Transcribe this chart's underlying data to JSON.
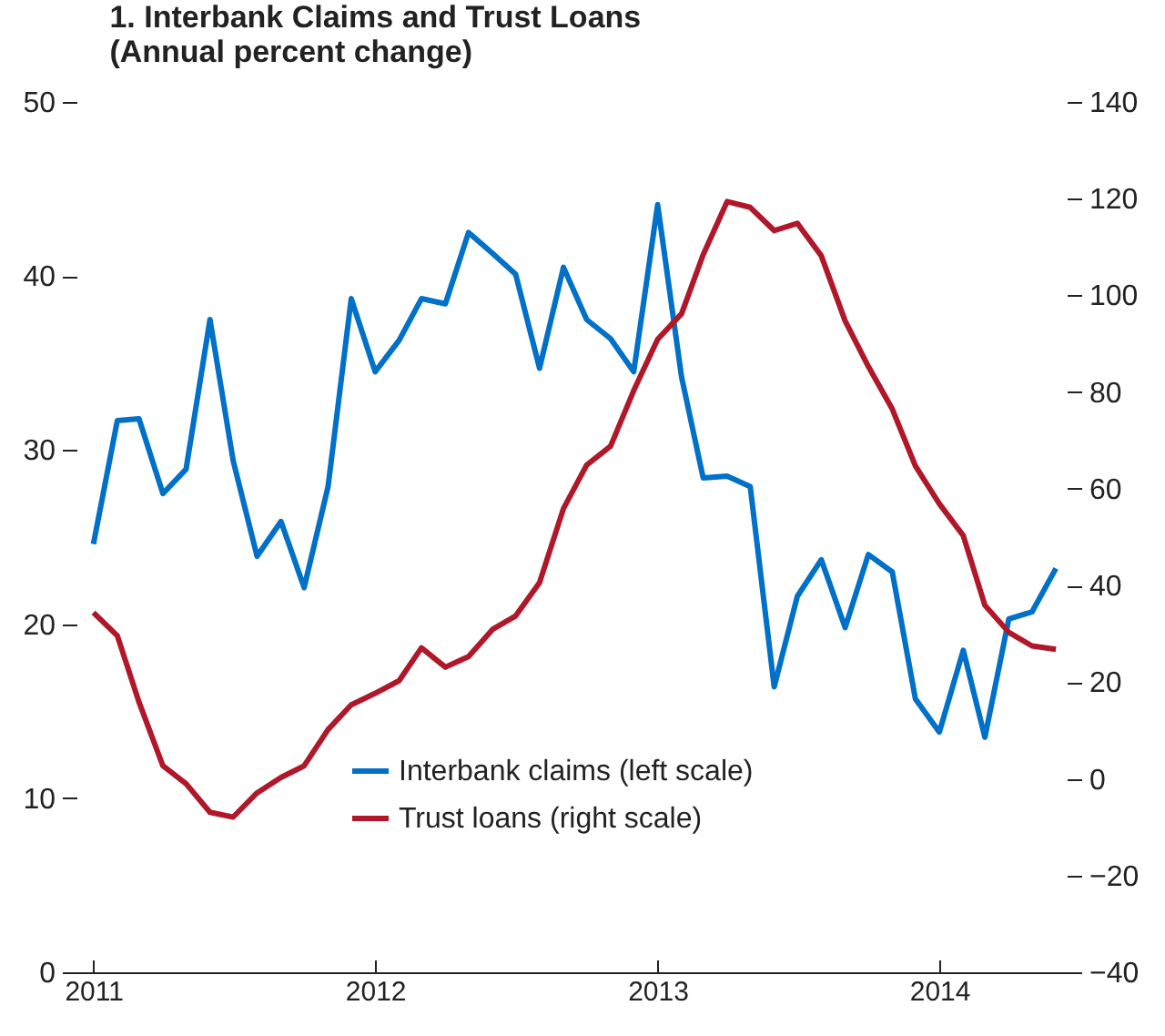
{
  "chart_data": {
    "type": "line",
    "title": "1. Interbank Claims and Trust Loans",
    "subtitle": "(Annual percent change)",
    "x": [
      "2011-01",
      "2011-02",
      "2011-03",
      "2011-04",
      "2011-05",
      "2011-06",
      "2011-07",
      "2011-08",
      "2011-09",
      "2011-10",
      "2011-11",
      "2011-12",
      "2012-01",
      "2012-02",
      "2012-03",
      "2012-04",
      "2012-05",
      "2012-06",
      "2012-07",
      "2012-08",
      "2012-09",
      "2012-10",
      "2012-11",
      "2012-12",
      "2013-01",
      "2013-02",
      "2013-03",
      "2013-04",
      "2013-05",
      "2013-06",
      "2013-07",
      "2013-08",
      "2013-09",
      "2013-10",
      "2013-11",
      "2013-12",
      "2014-01",
      "2014-02",
      "2014-03",
      "2014-04",
      "2014-05",
      "2014-06"
    ],
    "series": [
      {
        "name": "Interbank claims (left scale)",
        "color": "#0070c8",
        "values": [
          24.6,
          31.7,
          31.8,
          27.5,
          28.9,
          37.5,
          29.4,
          23.9,
          25.9,
          22.1,
          27.9,
          38.7,
          34.5,
          36.3,
          38.7,
          38.4,
          42.5,
          41.3,
          40.1,
          34.7,
          40.5,
          37.5,
          36.4,
          34.5,
          44.1,
          34.2,
          28.4,
          28.5,
          27.9,
          16.4,
          21.6,
          23.7,
          19.8,
          24.0,
          23.0,
          15.7,
          13.8,
          18.5,
          13.5,
          20.3,
          20.7,
          23.2
        ]
      },
      {
        "name": "Trust loans (right scale)",
        "color": "#b0182a",
        "axis": "y2",
        "values": [
          34.4,
          29.6,
          15.9,
          2.7,
          -1.0,
          -6.9,
          -7.9,
          -2.9,
          0.3,
          2.7,
          10.2,
          15.3,
          17.7,
          20.3,
          27.1,
          23.1,
          25.3,
          30.9,
          33.7,
          40.6,
          55.9,
          64.9,
          68.8,
          80.3,
          90.9,
          96.2,
          108.4,
          119.4,
          118.2,
          113.4,
          114.9,
          108.2,
          94.7,
          85.3,
          76.5,
          64.7,
          56.9,
          50.3,
          35.9,
          30.3,
          27.5,
          26.8
        ]
      }
    ],
    "xlim": [
      "2010-12-10",
      "2014-06-15"
    ],
    "xticks": [
      "2011",
      "2012",
      "2013",
      "2014"
    ],
    "ylim": [
      0,
      50
    ],
    "yticks": [
      0,
      10,
      20,
      30,
      40,
      50
    ],
    "y2lim": [
      -40,
      140
    ],
    "y2ticks": [
      -40,
      -20,
      0,
      20,
      40,
      60,
      80,
      100,
      120,
      140
    ],
    "legend": "bottom",
    "grid": false
  }
}
